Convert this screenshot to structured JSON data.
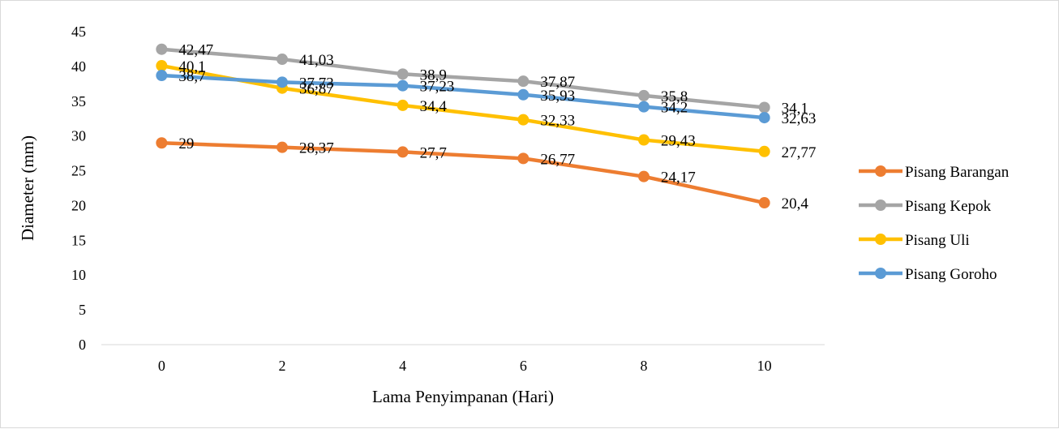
{
  "chart_data": {
    "type": "line",
    "title": "",
    "xlabel": "Lama Penyimpanan (Hari)",
    "ylabel": "Diameter (mm)",
    "x": [
      0,
      2,
      4,
      6,
      8,
      10
    ],
    "x_tick_labels": [
      "0",
      "2",
      "4",
      "6",
      "8",
      "10"
    ],
    "ylim": [
      0,
      45
    ],
    "y_ticks": [
      0,
      5,
      10,
      15,
      20,
      25,
      30,
      35,
      40,
      45
    ],
    "grid": false,
    "legend_position": "right",
    "series": [
      {
        "name": "Pisang Barangan",
        "color": "#ED7D31",
        "values": [
          29,
          28.37,
          27.7,
          26.77,
          24.17,
          20.4
        ],
        "labels": [
          "29",
          "28,37",
          "27,7",
          "26,77",
          "24,17",
          "20,4"
        ]
      },
      {
        "name": "Pisang Kepok",
        "color": "#A5A5A5",
        "values": [
          42.47,
          41.03,
          38.9,
          37.87,
          35.8,
          34.1
        ],
        "labels": [
          "42,47",
          "41,03",
          "38,9",
          "37,87",
          "35,8",
          "34,1"
        ]
      },
      {
        "name": "Pisang Uli",
        "color": "#FFC000",
        "values": [
          40.1,
          36.87,
          34.4,
          32.33,
          29.43,
          27.77
        ],
        "labels": [
          "40,1",
          "36,87",
          "34,4",
          "32,33",
          "29,43",
          "27,77"
        ]
      },
      {
        "name": "Pisang Goroho",
        "color": "#5B9BD5",
        "values": [
          38.7,
          37.73,
          37.23,
          35.93,
          34.2,
          32.63
        ],
        "labels": [
          "38,7",
          "37,73",
          "37,23",
          "35,93",
          "34,2",
          "32,63"
        ]
      }
    ]
  }
}
